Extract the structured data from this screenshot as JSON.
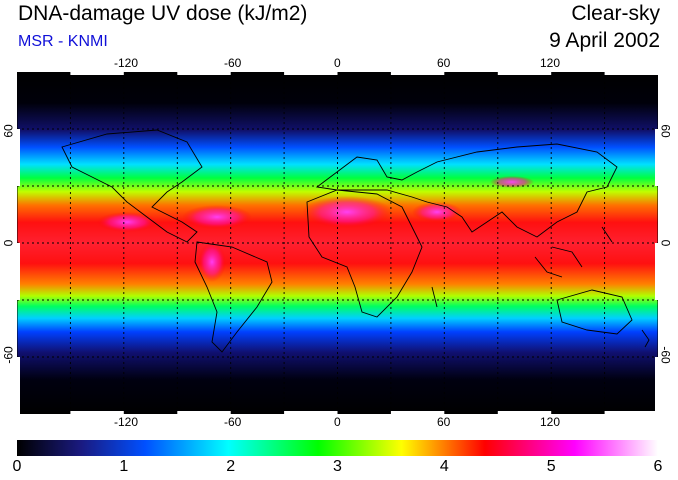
{
  "header": {
    "title": "DNA-damage UV dose (kJ/m2)",
    "source": "MSR - KNMI",
    "condition": "Clear-sky",
    "date": "9 April 2002"
  },
  "map": {
    "projection": "equirectangular",
    "lon_range": [
      -180,
      180
    ],
    "lat_range": [
      -90,
      90
    ],
    "lon_ticks": [
      "-120",
      "-60",
      "0",
      "60",
      "120"
    ],
    "lat_ticks": [
      "60",
      "0",
      "-60"
    ],
    "grid": "dotted every 30 degrees",
    "field": "UV dose peaking in tropics (~5 kJ/m2 at equator), dark toward poles"
  },
  "colorbar": {
    "labels": [
      "0",
      "1",
      "2",
      "3",
      "4",
      "5",
      "6"
    ],
    "min": 0,
    "max": 6,
    "colors": [
      "#000000",
      "#1a1a80",
      "#0050ff",
      "#00ffff",
      "#00ff00",
      "#ffff00",
      "#ff0000",
      "#ff00ff",
      "#ffffff"
    ]
  }
}
